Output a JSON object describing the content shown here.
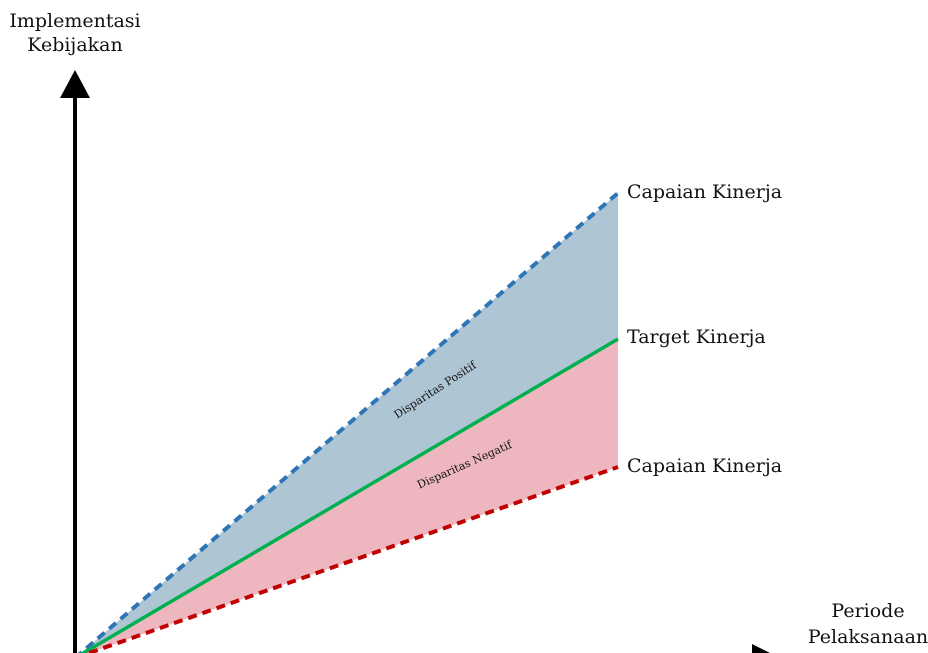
{
  "y_axis": {
    "label_line1": "Implementasi",
    "label_line2": "Kebijakan"
  },
  "x_axis": {
    "label_line1": "Periode",
    "label_line2": "Pelaksanaan"
  },
  "lines": {
    "upper": {
      "label": "Capaian Kinerja",
      "color": "#2e75b6",
      "style": "dashed"
    },
    "target": {
      "label": "Target Kinerja",
      "color": "#00b050",
      "style": "solid"
    },
    "lower": {
      "label": "Capaian Kinerja",
      "color": "#c00000",
      "style": "dashed"
    }
  },
  "regions": {
    "positive": {
      "label": "Disparitas Positif",
      "color": "#aec5d3"
    },
    "negative": {
      "label": "Disparitas Negatif",
      "color": "#eeb7c0"
    }
  },
  "axis_color": "#000000"
}
